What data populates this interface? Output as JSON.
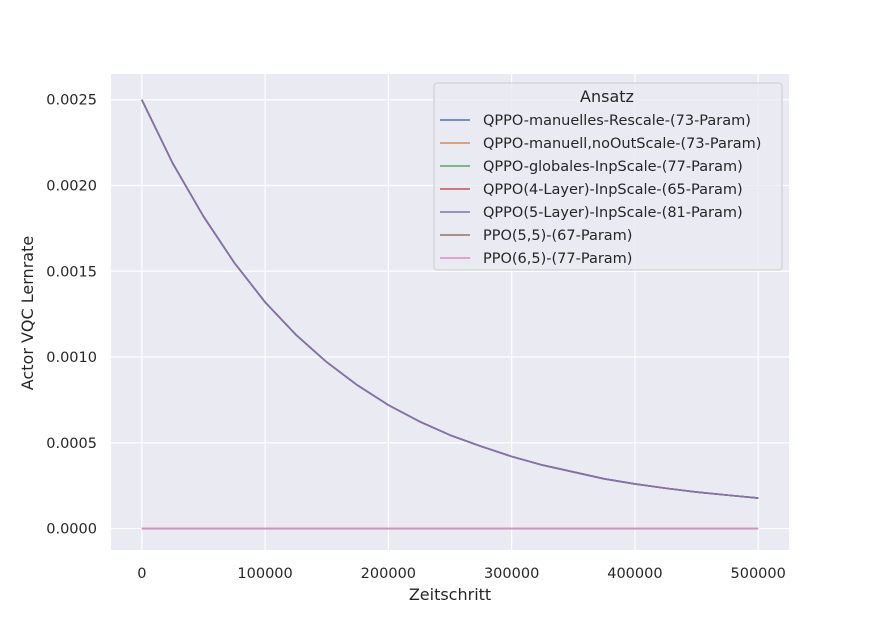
{
  "chart_data": {
    "type": "line",
    "xlabel": "Zeitschritt",
    "ylabel": "Actor VQC Lernrate",
    "xlim": [
      -25000,
      525000
    ],
    "ylim": [
      -0.000125,
      0.00265
    ],
    "xticks": [
      0,
      100000,
      200000,
      300000,
      400000,
      500000
    ],
    "xtick_labels": [
      "0",
      "100000",
      "200000",
      "300000",
      "400000",
      "500000"
    ],
    "yticks": [
      0.0,
      0.0005,
      0.001,
      0.0015,
      0.002,
      0.0025
    ],
    "ytick_labels": [
      "0.0000",
      "0.0005",
      "0.0010",
      "0.0015",
      "0.0020",
      "0.0025"
    ],
    "grid": true,
    "legend": {
      "title": "Ansatz",
      "position": "top-right"
    },
    "x": [
      0,
      25000,
      50000,
      75000,
      100000,
      125000,
      150000,
      175000,
      200000,
      225000,
      250000,
      275000,
      300000,
      325000,
      350000,
      375000,
      400000,
      425000,
      450000,
      475000,
      500000
    ],
    "series": [
      {
        "name": "QPPO-manuelles-Rescale-(73-Param)",
        "color": "#4c72b0",
        "values": [
          0.0025,
          0.00213,
          0.00182,
          0.00155,
          0.00132,
          0.00113,
          0.00097,
          0.000835,
          0.00072,
          0.000625,
          0.000545,
          0.00048,
          0.00042,
          0.00037,
          0.00033,
          0.00029,
          0.00026,
          0.000235,
          0.000213,
          0.000195,
          0.000178
        ]
      },
      {
        "name": "QPPO-manuell,noOutScale-(73-Param)",
        "color": "#dd8452",
        "values": [
          0.0025,
          0.00213,
          0.00182,
          0.00155,
          0.00132,
          0.00113,
          0.00097,
          0.000835,
          0.00072,
          0.000625,
          0.000545,
          0.00048,
          0.00042,
          0.00037,
          0.00033,
          0.00029,
          0.00026,
          0.000235,
          0.000213,
          0.000195,
          0.000178
        ]
      },
      {
        "name": "QPPO-globales-InpScale-(77-Param)",
        "color": "#55a868",
        "values": [
          0.0025,
          0.00213,
          0.00182,
          0.00155,
          0.00132,
          0.00113,
          0.00097,
          0.000835,
          0.00072,
          0.000625,
          0.000545,
          0.00048,
          0.00042,
          0.00037,
          0.00033,
          0.00029,
          0.00026,
          0.000235,
          0.000213,
          0.000195,
          0.000178
        ]
      },
      {
        "name": "QPPO(4-Layer)-InpScale-(65-Param)",
        "color": "#c44e52",
        "values": [
          0.0025,
          0.00213,
          0.00182,
          0.00155,
          0.00132,
          0.00113,
          0.00097,
          0.000835,
          0.00072,
          0.000625,
          0.000545,
          0.00048,
          0.00042,
          0.00037,
          0.00033,
          0.00029,
          0.00026,
          0.000235,
          0.000213,
          0.000195,
          0.000178
        ]
      },
      {
        "name": "QPPO(5-Layer)-InpScale-(81-Param)",
        "color": "#8172b3",
        "values": [
          0.0025,
          0.00213,
          0.00182,
          0.00155,
          0.00132,
          0.00113,
          0.00097,
          0.000835,
          0.00072,
          0.000625,
          0.000545,
          0.00048,
          0.00042,
          0.00037,
          0.00033,
          0.00029,
          0.00026,
          0.000235,
          0.000213,
          0.000195,
          0.000178
        ]
      },
      {
        "name": "PPO(5,5)-(67-Param)",
        "color": "#937860",
        "values": [
          0,
          0,
          0,
          0,
          0,
          0,
          0,
          0,
          0,
          0,
          0,
          0,
          0,
          0,
          0,
          0,
          0,
          0,
          0,
          0,
          0
        ]
      },
      {
        "name": "PPO(6,5)-(77-Param)",
        "color": "#da8bc3",
        "values": [
          0,
          0,
          0,
          0,
          0,
          0,
          0,
          0,
          0,
          0,
          0,
          0,
          0,
          0,
          0,
          0,
          0,
          0,
          0,
          0,
          0
        ]
      }
    ]
  }
}
